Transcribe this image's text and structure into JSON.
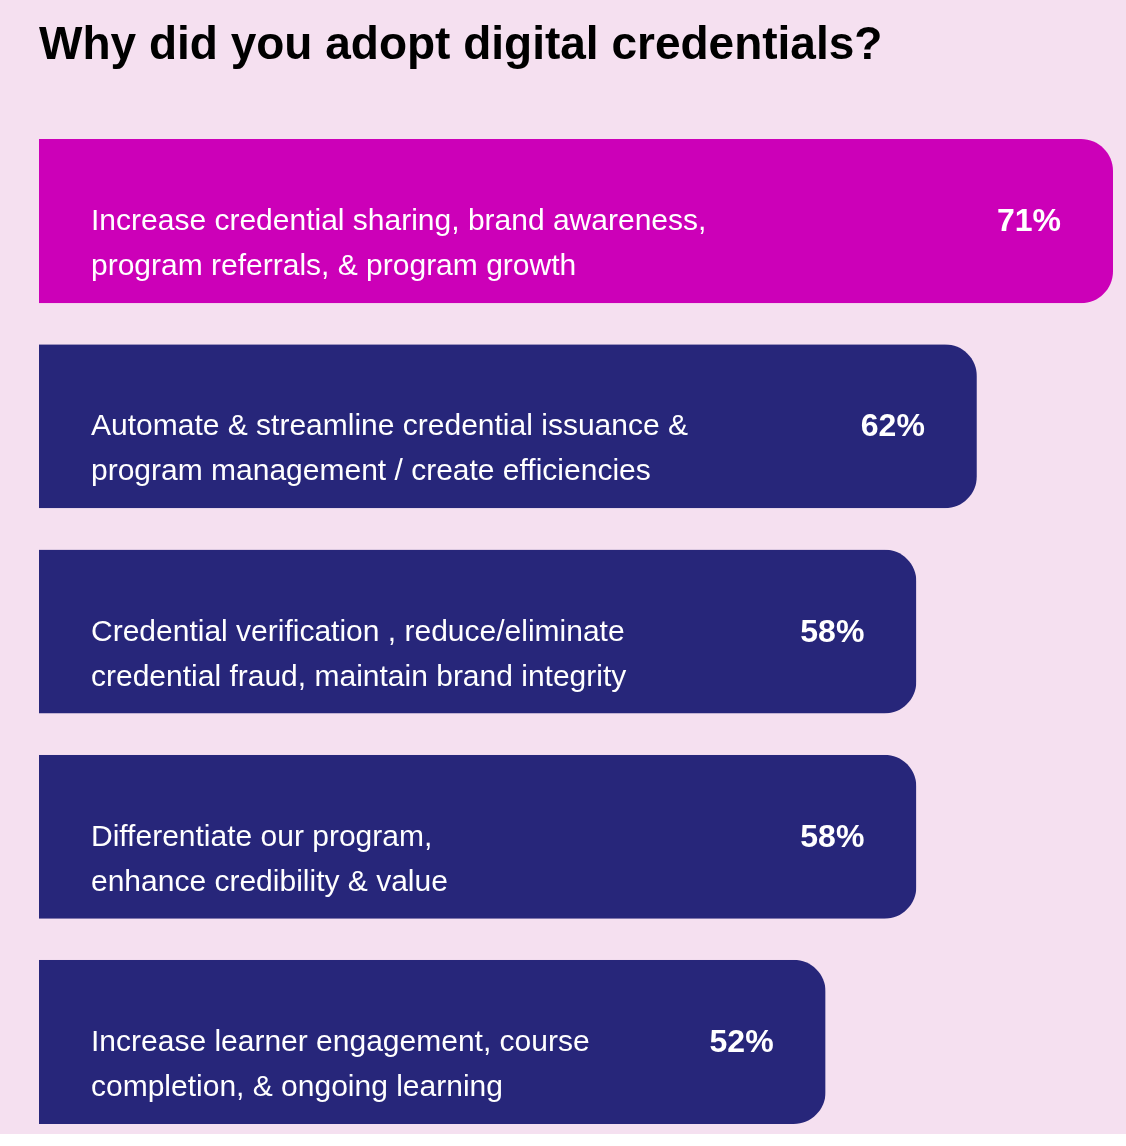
{
  "chart_data": {
    "type": "bar",
    "orientation": "horizontal",
    "title": "Why did you adopt digital credentials?",
    "categories": [
      "Increase credential sharing, brand awareness,\nprogram referrals, & program growth",
      "Automate & streamline credential issuance &\nprogram management / create efficiencies",
      "Credential verification , reduce/eliminate\ncredential fraud, maintain brand integrity",
      "Differentiate our program,\nenhance credibility & value",
      "Increase learner engagement, course\ncompletion, & ongoing learning"
    ],
    "values": [
      71,
      62,
      58,
      58,
      52
    ],
    "value_labels": [
      "71%",
      "62%",
      "58%",
      "58%",
      "52%"
    ],
    "colors": [
      "#cc00b8",
      "#27267a",
      "#27267a",
      "#27267a",
      "#27267a"
    ],
    "grid": false
  }
}
